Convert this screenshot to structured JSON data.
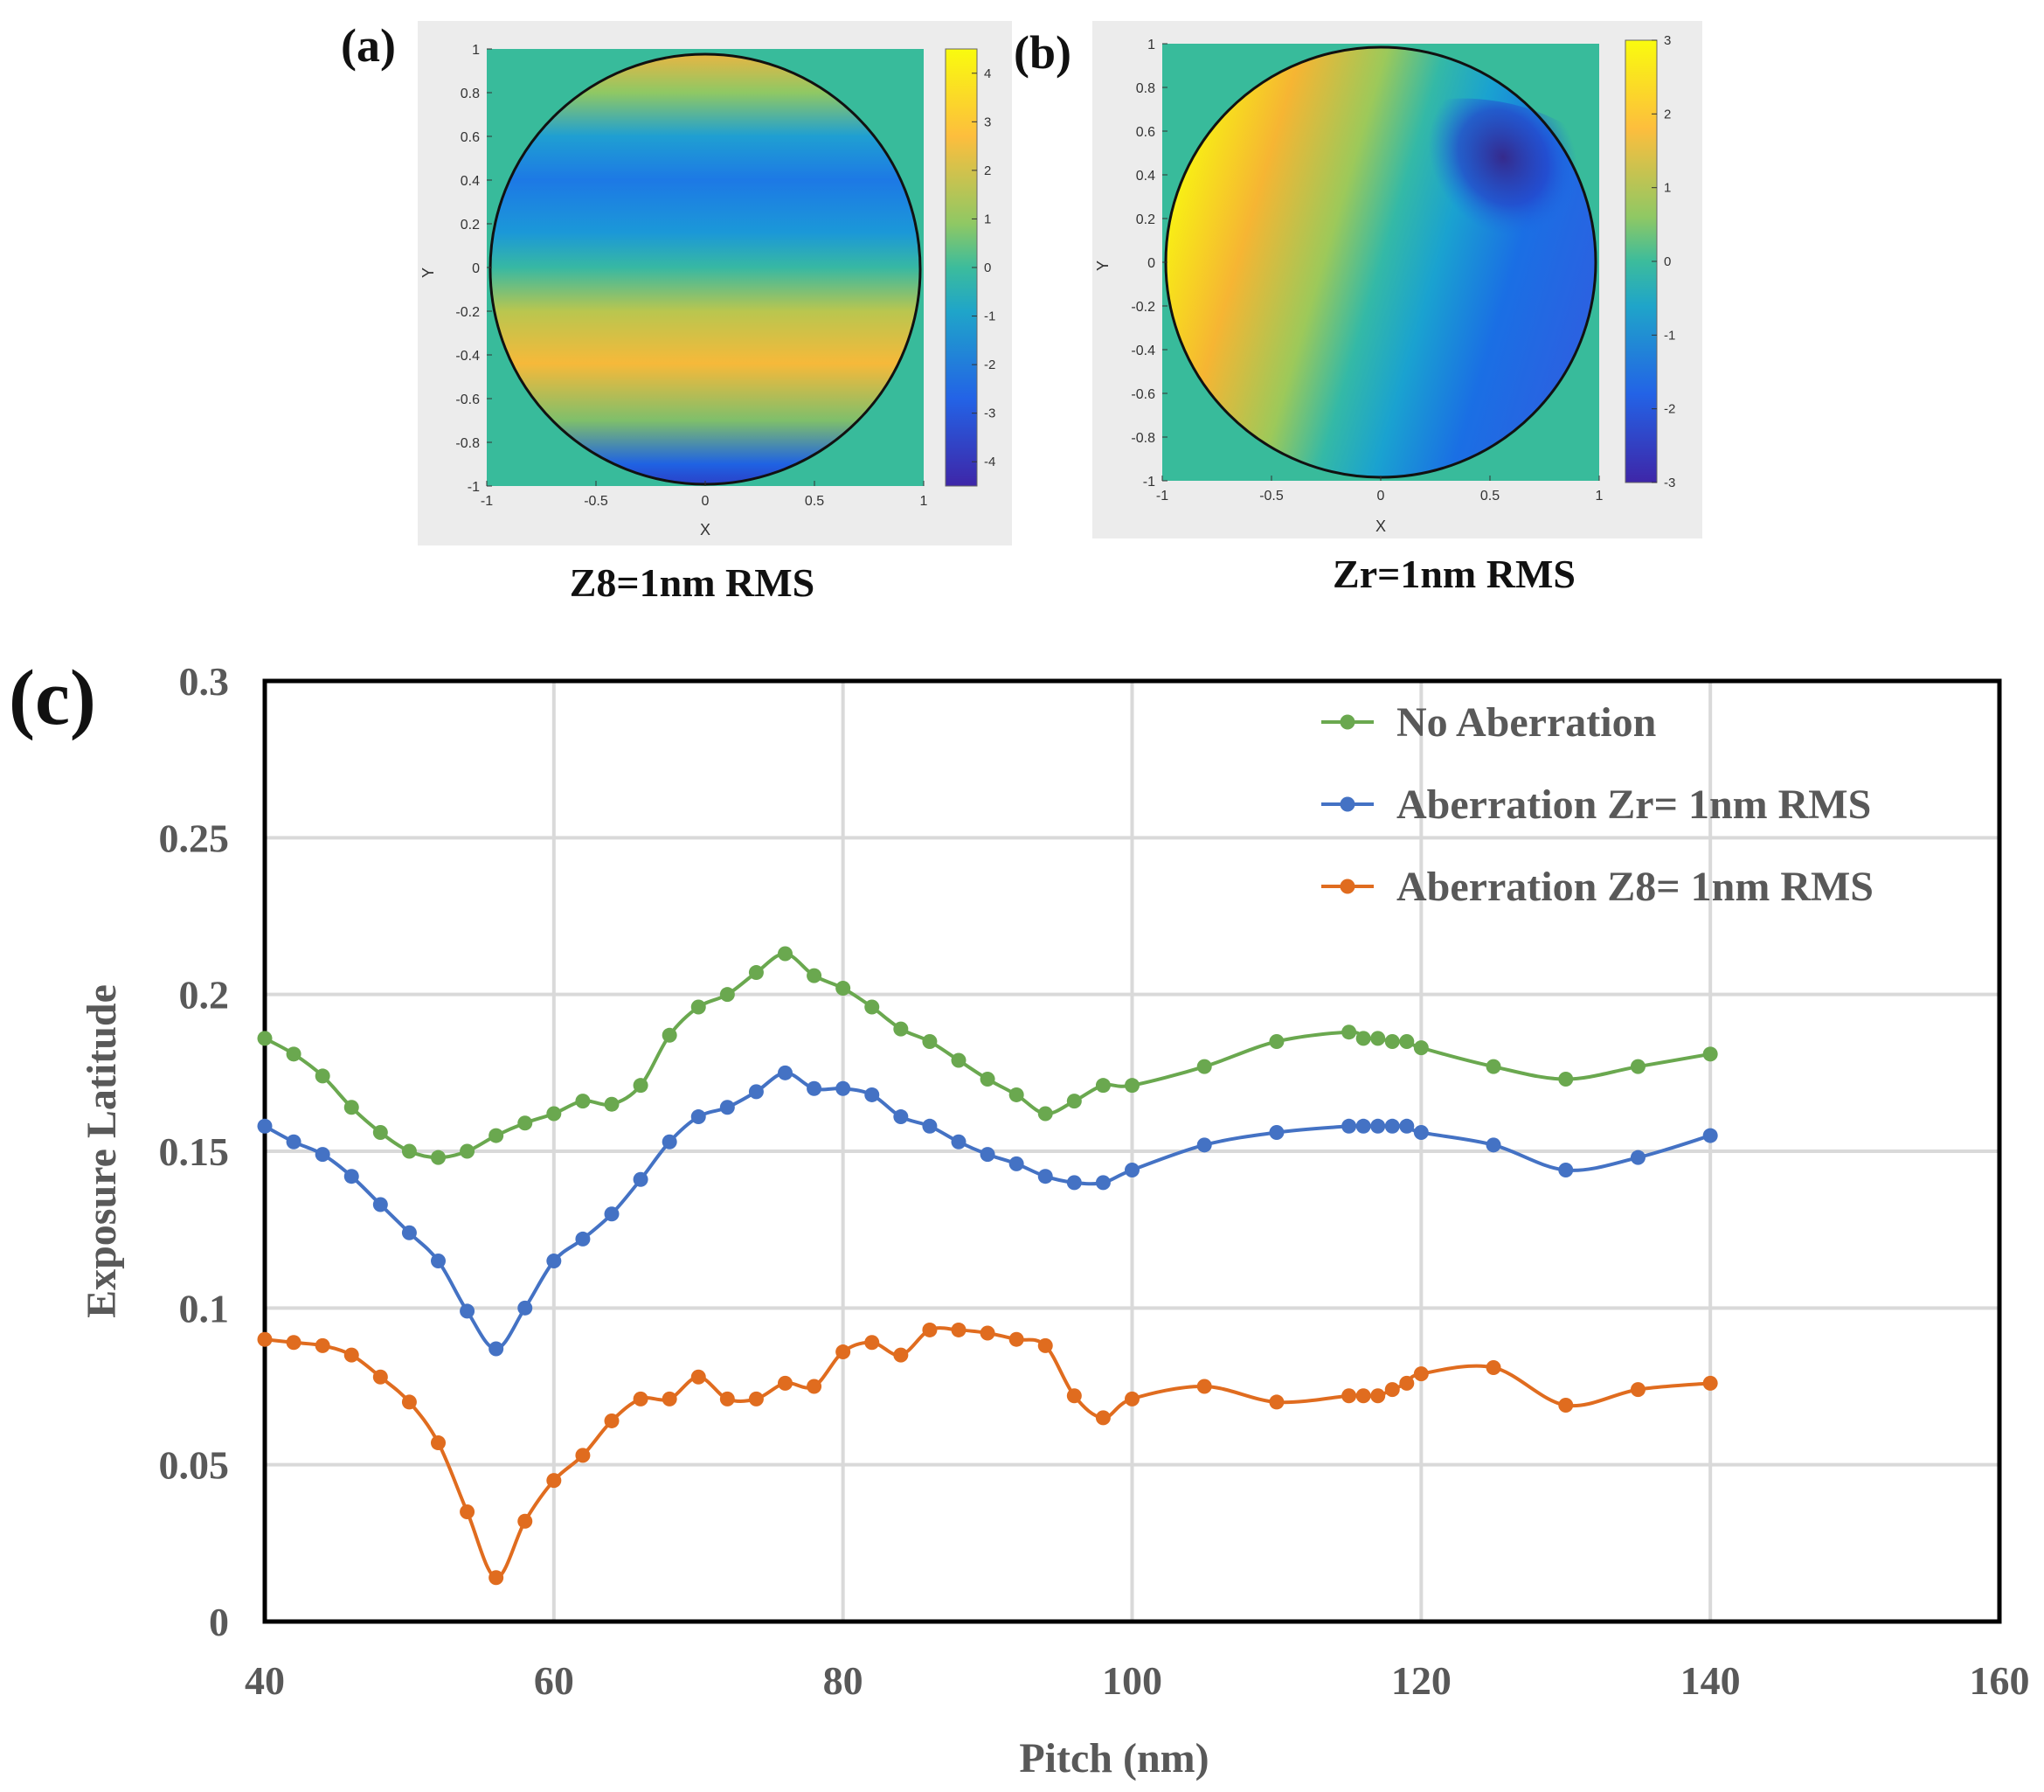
{
  "figure": {
    "panel_a": {
      "label": "(a)",
      "caption": "Z8=1nm RMS"
    },
    "panel_b": {
      "label": "(b)",
      "caption": "Zr=1nm RMS"
    },
    "panel_c": {
      "label": "(c)"
    }
  },
  "chart_data": [
    {
      "type": "heatmap",
      "panel": "a",
      "title": "Z8=1nm RMS",
      "xlabel": "X",
      "ylabel": "Y",
      "xlim": [
        -1,
        1
      ],
      "ylim": [
        -1,
        1
      ],
      "x_ticks": [
        "-1",
        "-0.5",
        "0",
        "0.5",
        "1"
      ],
      "y_ticks": [
        "1",
        "0.8",
        "0.6",
        "0.4",
        "0.2",
        "0",
        "-0.2",
        "-0.4",
        "-0.6",
        "-0.8",
        "-1"
      ],
      "colorbar": {
        "range": [
          -4.5,
          4.5
        ],
        "ticks": [
          "4",
          "3",
          "2",
          "1",
          "0",
          "-1",
          "-2",
          "-3",
          "-4"
        ]
      },
      "description_features": {
        "low_center_y": 0.45,
        "high_center_y": -0.45,
        "edge_high_y": 0.95,
        "edge_low_y": -0.95
      }
    },
    {
      "type": "heatmap",
      "panel": "b",
      "title": "Zr=1nm RMS",
      "xlabel": "X",
      "ylabel": "Y",
      "xlim": [
        -1,
        1
      ],
      "ylim": [
        -1,
        1
      ],
      "x_ticks": [
        "-1",
        "-0.5",
        "0",
        "0.5",
        "1"
      ],
      "y_ticks": [
        "1",
        "0.8",
        "0.6",
        "0.4",
        "0.2",
        "0",
        "-0.2",
        "-0.4",
        "-0.6",
        "-0.8",
        "-1"
      ],
      "colorbar": {
        "range": [
          -3,
          3
        ],
        "ticks": [
          "3",
          "2",
          "1",
          "0",
          "-1",
          "-2",
          "-3"
        ]
      },
      "description_features": {
        "max_at": [
          -0.85,
          -0.1
        ],
        "min_at": [
          0.55,
          0.55
        ]
      }
    },
    {
      "type": "line",
      "panel": "c",
      "xlabel": "Pitch (nm)",
      "ylabel": "Exposure Latitude",
      "xlim": [
        40,
        160
      ],
      "ylim": [
        0,
        0.3
      ],
      "x_ticks": [
        "40",
        "60",
        "80",
        "100",
        "120",
        "140",
        "160"
      ],
      "y_ticks": [
        "0",
        "0.05",
        "0.1",
        "0.15",
        "0.2",
        "0.25",
        "0.3"
      ],
      "grid": true,
      "legend_position": "top-right",
      "x": [
        40,
        42,
        44,
        46,
        48,
        50,
        52,
        54,
        56,
        58,
        60,
        62,
        64,
        66,
        68,
        70,
        72,
        74,
        76,
        78,
        80,
        82,
        84,
        86,
        88,
        90,
        92,
        94,
        96,
        98,
        100,
        105,
        110,
        115,
        116,
        117,
        118,
        119,
        120,
        125,
        130,
        135,
        140
      ],
      "series": [
        {
          "name": "No Aberration",
          "color": "#6aa84f",
          "values": [
            0.186,
            0.181,
            0.174,
            0.164,
            0.156,
            0.15,
            0.148,
            0.15,
            0.155,
            0.159,
            0.162,
            0.166,
            0.165,
            0.171,
            0.187,
            0.196,
            0.2,
            0.207,
            0.213,
            0.206,
            0.202,
            0.196,
            0.189,
            0.185,
            0.179,
            0.173,
            0.168,
            0.162,
            0.166,
            0.171,
            0.171,
            0.177,
            0.185,
            0.188,
            0.186,
            0.186,
            0.185,
            0.185,
            0.183,
            0.177,
            0.173,
            0.177,
            0.181
          ]
        },
        {
          "name": "Aberration Zr= 1nm RMS",
          "color": "#4472c4",
          "values": [
            0.158,
            0.153,
            0.149,
            0.142,
            0.133,
            0.124,
            0.115,
            0.099,
            0.087,
            0.1,
            0.115,
            0.122,
            0.13,
            0.141,
            0.153,
            0.161,
            0.164,
            0.169,
            0.175,
            0.17,
            0.17,
            0.168,
            0.161,
            0.158,
            0.153,
            0.149,
            0.146,
            0.142,
            0.14,
            0.14,
            0.144,
            0.152,
            0.156,
            0.158,
            0.158,
            0.158,
            0.158,
            0.158,
            0.156,
            0.152,
            0.144,
            0.148,
            0.155
          ]
        },
        {
          "name": "Aberration Z8= 1nm RMS",
          "color": "#e06c1f",
          "values": [
            0.09,
            0.089,
            0.088,
            0.085,
            0.078,
            0.07,
            0.057,
            0.035,
            0.014,
            0.032,
            0.045,
            0.053,
            0.064,
            0.071,
            0.071,
            0.078,
            0.071,
            0.071,
            0.076,
            0.075,
            0.086,
            0.089,
            0.085,
            0.093,
            0.093,
            0.092,
            0.09,
            0.088,
            0.072,
            0.065,
            0.071,
            0.075,
            0.07,
            0.072,
            0.072,
            0.072,
            0.074,
            0.076,
            0.079,
            0.081,
            0.069,
            0.074,
            0.076
          ]
        }
      ]
    }
  ]
}
